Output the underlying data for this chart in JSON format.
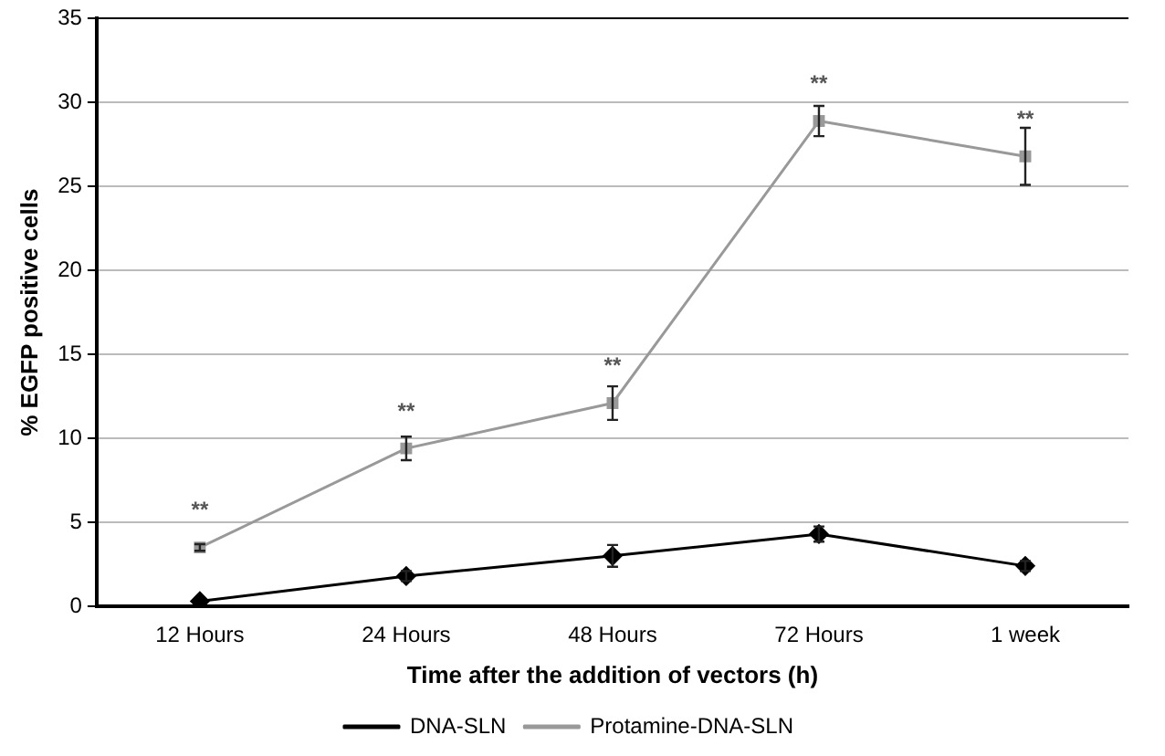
{
  "chart_data": {
    "type": "line",
    "xlabel": "Time after the addition of vectors (h)",
    "ylabel": "% EGFP positive cells",
    "categories": [
      "12 Hours",
      "24 Hours",
      "48 Hours",
      "72 Hours",
      "1 week"
    ],
    "series": [
      {
        "name": "DNA-SLN",
        "color": "#000000",
        "marker": "diamond",
        "values": [
          0.3,
          1.8,
          3.0,
          4.3,
          2.4
        ],
        "errors": [
          null,
          0.3,
          0.65,
          0.45,
          0.3
        ]
      },
      {
        "name": "Protamine-DNA-SLN",
        "color": "#999999",
        "marker": "square",
        "values": [
          3.5,
          9.4,
          12.1,
          28.9,
          26.8
        ],
        "errors": [
          0.2,
          0.7,
          1.0,
          0.9,
          1.7
        ]
      }
    ],
    "ylim": [
      0,
      35
    ],
    "yticks": [
      0,
      5,
      10,
      15,
      20,
      25,
      30,
      35
    ],
    "grid": "y",
    "legend": "bottom",
    "line_style": "solid",
    "annotations": [
      {
        "text": "**",
        "x": "12 Hours",
        "y": 3.5
      },
      {
        "text": "**",
        "x": "24 Hours",
        "y": 9.4
      },
      {
        "text": "**",
        "x": "48 Hours",
        "y": 12.1
      },
      {
        "text": "**",
        "x": "72 Hours",
        "y": 28.9
      },
      {
        "text": "**",
        "x": "1 week",
        "y": 26.8
      }
    ]
  }
}
